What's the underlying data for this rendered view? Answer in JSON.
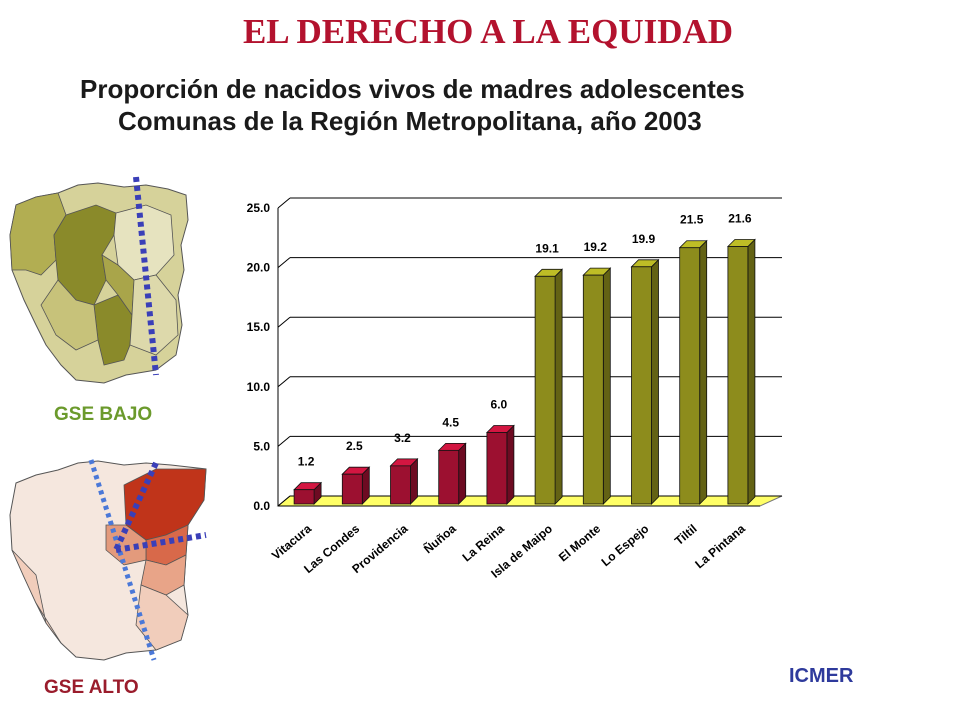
{
  "page": {
    "title": "EL DERECHO A LA EQUIDAD",
    "subtitle_line1": "Proporción de nacidos vivos de madres adolescentes",
    "subtitle_line2": "Comunas de la Región Metropolitana, año 2003",
    "map_label_low": "GSE BAJO",
    "map_label_high": "GSE ALTO",
    "credit": "ICMER"
  },
  "colors": {
    "title": "#b3122e",
    "low_ses_bar": "#8d8c1c",
    "high_ses_bar": "#9c1030",
    "floor": "#ffff66",
    "map_low_dark": "#8a8a2a",
    "map_low_light": "#d6d29a",
    "map_high_dark": "#c0341a",
    "map_high_light": "#f1cdbb",
    "dotted_line": "#3a3fb8"
  },
  "chart_data": {
    "type": "bar",
    "categories": [
      "Vitacura",
      "Las Condes",
      "Providencia",
      "Ñuñoa",
      "La Reina",
      "Isla de Maipo",
      "El Monte",
      "Lo Espejo",
      "Tiltil",
      "La Pintana"
    ],
    "values": [
      1.2,
      2.5,
      3.2,
      4.5,
      6.0,
      19.1,
      19.2,
      19.9,
      21.5,
      21.6
    ],
    "value_labels": [
      "1.2",
      "2.5",
      "3.2",
      "4.5",
      "6.0",
      "19.1",
      "19.2",
      "19.9",
      "21.5",
      "21.6"
    ],
    "groups": [
      "high",
      "high",
      "high",
      "high",
      "high",
      "low",
      "low",
      "low",
      "low",
      "low"
    ],
    "ylim": [
      0,
      25
    ],
    "y_ticks": [
      "0.0",
      "5.0",
      "10.0",
      "15.0",
      "20.0",
      "25.0"
    ],
    "grid": true,
    "legend": "none",
    "style": "3d-bar"
  }
}
